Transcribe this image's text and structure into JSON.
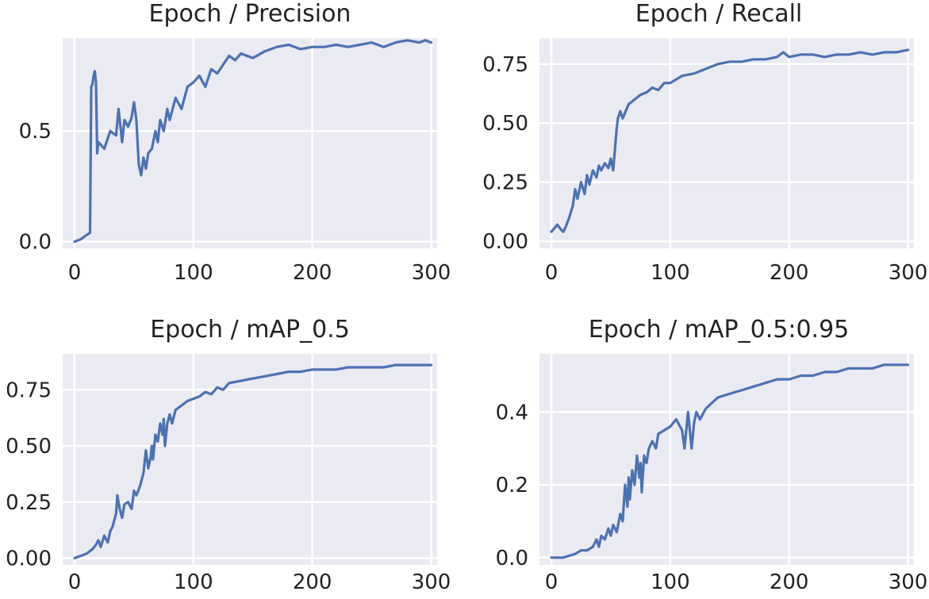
{
  "chart_data": [
    {
      "type": "line",
      "title": "Epoch / Precision",
      "xlim": [
        -10,
        305
      ],
      "ylim": [
        -0.03,
        0.92
      ],
      "xticks": [
        0,
        100,
        200,
        300
      ],
      "yticks": [
        0.0,
        0.5
      ],
      "ytick_labels": [
        "0.0",
        "0.5"
      ],
      "grid": true,
      "series": [
        {
          "color": "#4c72b0",
          "x": [
            0,
            5,
            10,
            13,
            14,
            15,
            16,
            17,
            18,
            19,
            20,
            25,
            30,
            35,
            37,
            40,
            42,
            45,
            48,
            50,
            52,
            54,
            56,
            58,
            60,
            62,
            65,
            68,
            70,
            72,
            75,
            78,
            80,
            85,
            90,
            95,
            100,
            105,
            110,
            115,
            120,
            125,
            130,
            135,
            140,
            150,
            160,
            170,
            180,
            190,
            200,
            210,
            220,
            230,
            240,
            250,
            260,
            270,
            280,
            290,
            295,
            300
          ],
          "y": [
            0.0,
            0.01,
            0.03,
            0.04,
            0.7,
            0.71,
            0.75,
            0.77,
            0.72,
            0.4,
            0.45,
            0.42,
            0.5,
            0.48,
            0.6,
            0.45,
            0.55,
            0.52,
            0.56,
            0.63,
            0.55,
            0.35,
            0.3,
            0.38,
            0.33,
            0.4,
            0.42,
            0.5,
            0.45,
            0.55,
            0.5,
            0.6,
            0.55,
            0.65,
            0.6,
            0.7,
            0.72,
            0.75,
            0.7,
            0.78,
            0.76,
            0.8,
            0.84,
            0.82,
            0.85,
            0.83,
            0.86,
            0.88,
            0.89,
            0.87,
            0.88,
            0.88,
            0.89,
            0.88,
            0.89,
            0.9,
            0.88,
            0.9,
            0.91,
            0.9,
            0.91,
            0.9
          ]
        }
      ]
    },
    {
      "type": "line",
      "title": "Epoch / Recall",
      "xlim": [
        -10,
        305
      ],
      "ylim": [
        -0.03,
        0.86
      ],
      "xticks": [
        0,
        100,
        200,
        300
      ],
      "yticks": [
        0.0,
        0.25,
        0.5,
        0.75
      ],
      "ytick_labels": [
        "0.00",
        "0.25",
        "0.50",
        "0.75"
      ],
      "grid": true,
      "series": [
        {
          "color": "#4c72b0",
          "x": [
            0,
            5,
            8,
            10,
            12,
            15,
            18,
            20,
            22,
            25,
            28,
            30,
            32,
            35,
            38,
            40,
            42,
            45,
            48,
            50,
            52,
            55,
            56,
            58,
            60,
            65,
            70,
            75,
            80,
            85,
            90,
            95,
            100,
            110,
            120,
            130,
            140,
            150,
            160,
            170,
            180,
            190,
            195,
            200,
            210,
            220,
            230,
            240,
            250,
            260,
            270,
            280,
            290,
            300
          ],
          "y": [
            0.04,
            0.07,
            0.05,
            0.04,
            0.06,
            0.1,
            0.15,
            0.22,
            0.18,
            0.25,
            0.2,
            0.28,
            0.24,
            0.3,
            0.27,
            0.32,
            0.3,
            0.33,
            0.31,
            0.35,
            0.3,
            0.48,
            0.52,
            0.55,
            0.52,
            0.58,
            0.6,
            0.62,
            0.63,
            0.65,
            0.64,
            0.67,
            0.67,
            0.7,
            0.71,
            0.73,
            0.75,
            0.76,
            0.76,
            0.77,
            0.77,
            0.78,
            0.8,
            0.78,
            0.79,
            0.79,
            0.78,
            0.79,
            0.79,
            0.8,
            0.79,
            0.8,
            0.8,
            0.81
          ]
        }
      ]
    },
    {
      "type": "line",
      "title": "Epoch / mAP_0.5",
      "xlim": [
        -10,
        305
      ],
      "ylim": [
        -0.03,
        0.91
      ],
      "xticks": [
        0,
        100,
        200,
        300
      ],
      "yticks": [
        0.0,
        0.25,
        0.5,
        0.75
      ],
      "ytick_labels": [
        "0.00",
        "0.25",
        "0.50",
        "0.75"
      ],
      "grid": true,
      "series": [
        {
          "color": "#4c72b0",
          "x": [
            0,
            5,
            10,
            15,
            18,
            20,
            22,
            25,
            28,
            30,
            32,
            35,
            36,
            38,
            40,
            42,
            45,
            48,
            50,
            52,
            55,
            58,
            60,
            62,
            64,
            65,
            66,
            68,
            70,
            72,
            74,
            75,
            76,
            78,
            80,
            82,
            85,
            90,
            95,
            100,
            105,
            110,
            115,
            120,
            125,
            130,
            140,
            150,
            160,
            170,
            180,
            190,
            200,
            210,
            220,
            230,
            240,
            250,
            260,
            270,
            280,
            290,
            300
          ],
          "y": [
            0.0,
            0.01,
            0.02,
            0.04,
            0.06,
            0.08,
            0.05,
            0.1,
            0.07,
            0.12,
            0.14,
            0.2,
            0.28,
            0.22,
            0.18,
            0.24,
            0.25,
            0.22,
            0.3,
            0.28,
            0.32,
            0.38,
            0.48,
            0.4,
            0.45,
            0.5,
            0.44,
            0.55,
            0.52,
            0.6,
            0.55,
            0.62,
            0.5,
            0.6,
            0.64,
            0.6,
            0.66,
            0.68,
            0.7,
            0.71,
            0.72,
            0.74,
            0.73,
            0.76,
            0.75,
            0.78,
            0.79,
            0.8,
            0.81,
            0.82,
            0.83,
            0.83,
            0.84,
            0.84,
            0.84,
            0.85,
            0.85,
            0.85,
            0.85,
            0.86,
            0.86,
            0.86,
            0.86
          ]
        }
      ]
    },
    {
      "type": "line",
      "title": "Epoch / mAP_0.5:0.95",
      "xlim": [
        -10,
        305
      ],
      "ylim": [
        -0.02,
        0.56
      ],
      "xticks": [
        0,
        100,
        200,
        300
      ],
      "yticks": [
        0.0,
        0.2,
        0.4
      ],
      "ytick_labels": [
        "0.0",
        "0.2",
        "0.4"
      ],
      "grid": true,
      "series": [
        {
          "color": "#4c72b0",
          "x": [
            0,
            10,
            20,
            25,
            30,
            35,
            38,
            40,
            42,
            45,
            48,
            50,
            52,
            55,
            58,
            60,
            62,
            64,
            65,
            66,
            68,
            70,
            72,
            74,
            75,
            76,
            78,
            80,
            82,
            85,
            88,
            90,
            95,
            100,
            105,
            110,
            112,
            115,
            118,
            120,
            122,
            125,
            130,
            140,
            150,
            160,
            170,
            180,
            190,
            200,
            210,
            220,
            230,
            240,
            250,
            260,
            270,
            280,
            290,
            300
          ],
          "y": [
            0.0,
            0.0,
            0.01,
            0.02,
            0.02,
            0.03,
            0.05,
            0.03,
            0.06,
            0.05,
            0.08,
            0.06,
            0.09,
            0.07,
            0.12,
            0.1,
            0.2,
            0.14,
            0.22,
            0.16,
            0.24,
            0.2,
            0.28,
            0.22,
            0.26,
            0.18,
            0.28,
            0.26,
            0.3,
            0.32,
            0.3,
            0.34,
            0.35,
            0.36,
            0.38,
            0.35,
            0.3,
            0.4,
            0.3,
            0.37,
            0.4,
            0.38,
            0.41,
            0.44,
            0.45,
            0.46,
            0.47,
            0.48,
            0.49,
            0.49,
            0.5,
            0.5,
            0.51,
            0.51,
            0.52,
            0.52,
            0.52,
            0.53,
            0.53,
            0.53
          ]
        }
      ]
    }
  ]
}
